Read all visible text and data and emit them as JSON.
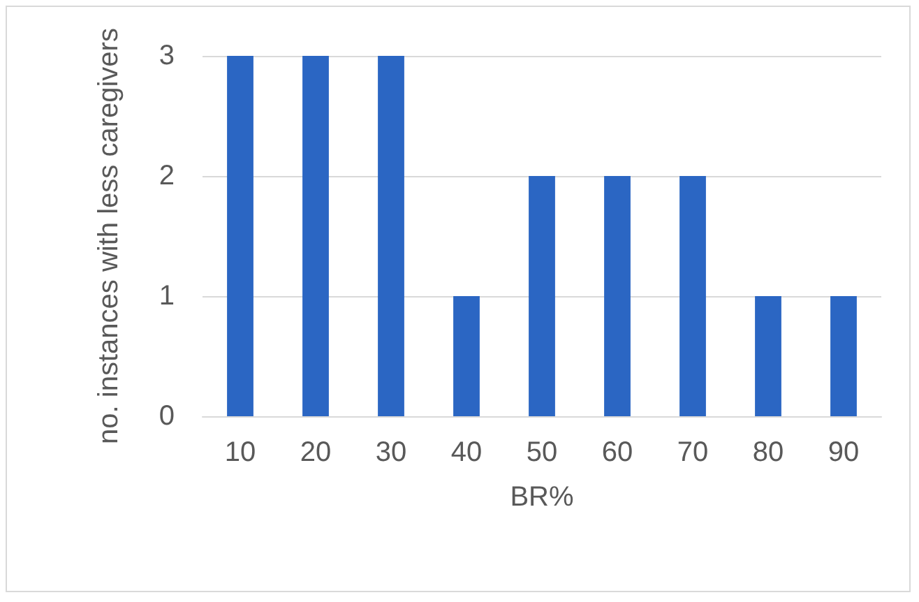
{
  "chart_data": {
    "type": "bar",
    "xlabel": "BR%",
    "ylabel": "no. instances with less caregivers",
    "categories": [
      "10",
      "20",
      "30",
      "40",
      "50",
      "60",
      "70",
      "80",
      "90"
    ],
    "values": [
      3,
      3,
      3,
      1,
      2,
      2,
      2,
      1,
      1
    ],
    "color": "#2b66c3",
    "ylim": [
      0,
      3
    ],
    "yticks": [
      0,
      1,
      2,
      3
    ],
    "grid": "y"
  }
}
